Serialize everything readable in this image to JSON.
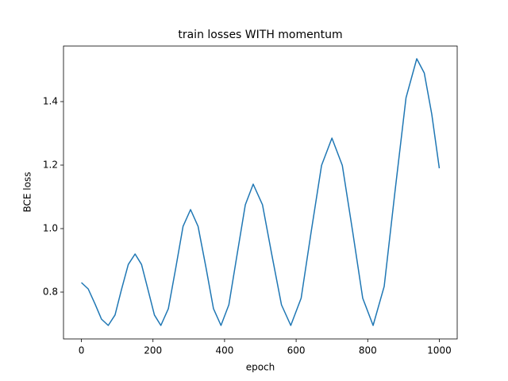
{
  "chart_data": {
    "type": "line",
    "title": "train losses WITH momentum",
    "x_label": "epoch",
    "y_label": "BCE loss",
    "x": [
      0,
      19,
      38,
      56,
      75,
      94,
      112,
      131,
      150,
      168,
      186,
      204,
      222,
      243,
      264,
      284,
      305,
      326,
      348,
      369,
      390,
      412,
      435,
      458,
      480,
      506,
      532,
      559,
      585,
      614,
      642,
      671,
      700,
      729,
      758,
      786,
      815,
      846,
      876,
      907,
      937,
      958,
      979,
      1000
    ],
    "series": [
      {
        "color": "#1f77b4",
        "values": [
          0.83,
          0.81,
          0.763,
          0.715,
          0.695,
          0.728,
          0.808,
          0.887,
          0.92,
          0.887,
          0.808,
          0.728,
          0.695,
          0.748,
          0.878,
          1.007,
          1.06,
          1.007,
          0.878,
          0.748,
          0.695,
          0.76,
          0.918,
          1.075,
          1.14,
          1.075,
          0.918,
          0.76,
          0.695,
          0.781,
          0.99,
          1.199,
          1.285,
          1.199,
          0.99,
          0.781,
          0.695,
          0.818,
          1.115,
          1.412,
          1.535,
          1.49,
          1.36,
          1.19
        ]
      }
    ],
    "xlim": [
      -50,
      1050
    ],
    "xticks": [
      0,
      200,
      400,
      600,
      800,
      1000
    ],
    "ylim": [
      0.6525,
      1.575
    ],
    "yticks": [
      0.8,
      {
        "value": 1,
        "label": "1.0"
      },
      1.2,
      1.4
    ],
    "grid": false
  }
}
